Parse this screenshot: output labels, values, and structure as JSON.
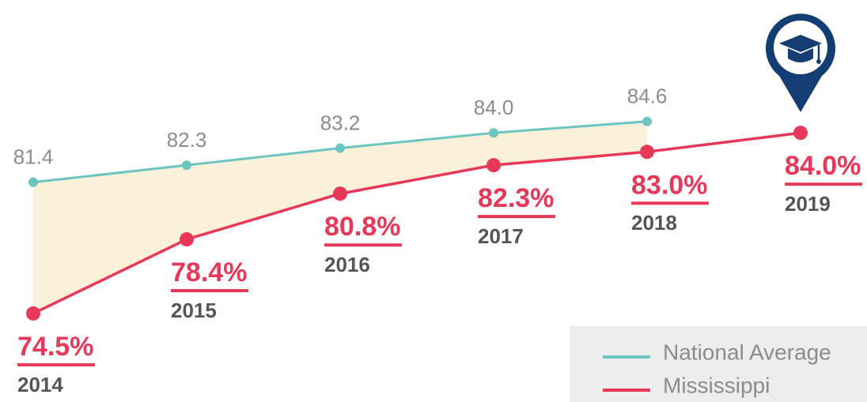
{
  "chart_data": {
    "type": "line",
    "categories": [
      "2014",
      "2015",
      "2016",
      "2017",
      "2018",
      "2019"
    ],
    "series": [
      {
        "name": "National Average",
        "color": "#6cc5c0",
        "values": [
          81.4,
          82.3,
          83.2,
          84.0,
          84.6,
          null
        ],
        "value_labels": [
          "81.4",
          "82.3",
          "83.2",
          "84.0",
          "84.6",
          null
        ]
      },
      {
        "name": "Mississippi",
        "color": "#e8385a",
        "values": [
          74.5,
          78.4,
          80.8,
          82.3,
          83.0,
          84.0
        ],
        "value_labels": [
          "74.5%",
          "78.4%",
          "80.8%",
          "82.3%",
          "83.0%",
          "84.0%"
        ]
      }
    ],
    "ylim": [
      73,
      87
    ],
    "area_color": "#fbf1d9",
    "legend": "lower right"
  }
}
